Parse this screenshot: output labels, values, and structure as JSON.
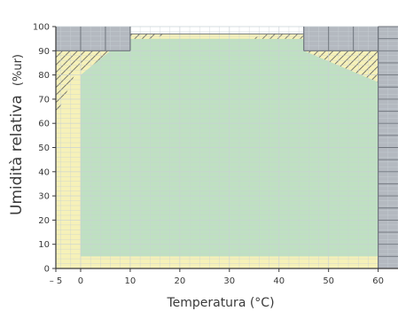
{
  "chart_data": {
    "type": "area",
    "xlabel": "Temperatura (°C)",
    "ylabel": "Umidità relativa",
    "ylabel_unit": "(%ur)",
    "x_ticks": [
      "– 5",
      "0",
      "10",
      "20",
      "30",
      "40",
      "50",
      "60"
    ],
    "x_tick_values": [
      -5,
      0,
      10,
      20,
      30,
      40,
      50,
      60
    ],
    "y_ticks": [
      "0",
      "10",
      "20",
      "30",
      "40",
      "50",
      "60",
      "70",
      "80",
      "90",
      "100"
    ],
    "y_tick_values": [
      0,
      10,
      20,
      30,
      40,
      50,
      60,
      70,
      80,
      90,
      100
    ],
    "xlim": [
      -5,
      64
    ],
    "ylim": [
      0,
      100
    ],
    "grid": true,
    "regions": [
      {
        "polygon": [
          [
            -5,
            0
          ],
          [
            60,
            0
          ],
          [
            60,
            95
          ],
          [
            45,
            95
          ],
          [
            45,
            97
          ],
          [
            10,
            97
          ],
          [
            10,
            90
          ],
          [
            -5,
            90
          ]
        ],
        "fill": "#f6f1b8"
      },
      {
        "polygon": [
          [
            0,
            5
          ],
          [
            60,
            5
          ],
          [
            60,
            90
          ],
          [
            45,
            90
          ],
          [
            45,
            95
          ],
          [
            10,
            95
          ],
          [
            10,
            90
          ],
          [
            0,
            90
          ]
        ],
        "fill": "#bfe0c2"
      },
      {
        "polygon": [
          [
            -5,
            90
          ],
          [
            10,
            90
          ],
          [
            10,
            100
          ],
          [
            -5,
            100
          ]
        ],
        "fill": "#b4b9c0"
      },
      {
        "polygon": [
          [
            45,
            90
          ],
          [
            60,
            90
          ],
          [
            60,
            100
          ],
          [
            45,
            100
          ]
        ],
        "fill": "#b4b9c0"
      },
      {
        "polygon": [
          [
            60,
            0
          ],
          [
            64,
            0
          ],
          [
            64,
            100
          ],
          [
            60,
            100
          ]
        ],
        "fill": "#b4b9c0"
      }
    ],
    "hatched_regions": [
      {
        "polygon": [
          [
            -5,
            63
          ],
          [
            -5,
            90
          ],
          [
            1,
            90
          ]
        ]
      },
      {
        "polygon": [
          [
            0,
            80
          ],
          [
            0,
            90
          ],
          [
            6,
            90
          ]
        ]
      },
      {
        "polygon": [
          [
            10,
            95
          ],
          [
            10,
            97
          ],
          [
            18,
            97
          ],
          [
            14,
            95
          ]
        ]
      },
      {
        "polygon": [
          [
            34,
            95
          ],
          [
            38,
            97
          ],
          [
            45,
            97
          ],
          [
            45,
            95
          ]
        ]
      },
      {
        "polygon": [
          [
            45,
            90
          ],
          [
            60,
            77
          ],
          [
            60,
            90
          ]
        ]
      }
    ],
    "colors": {
      "grey_zone": "#b4b9c0",
      "yellow_zone": "#f6f1b8",
      "green_zone": "#bfe0c2",
      "hatch": "#5a5a5a",
      "grid": "#c9d1d6",
      "cell_line": "#6f757d"
    }
  }
}
